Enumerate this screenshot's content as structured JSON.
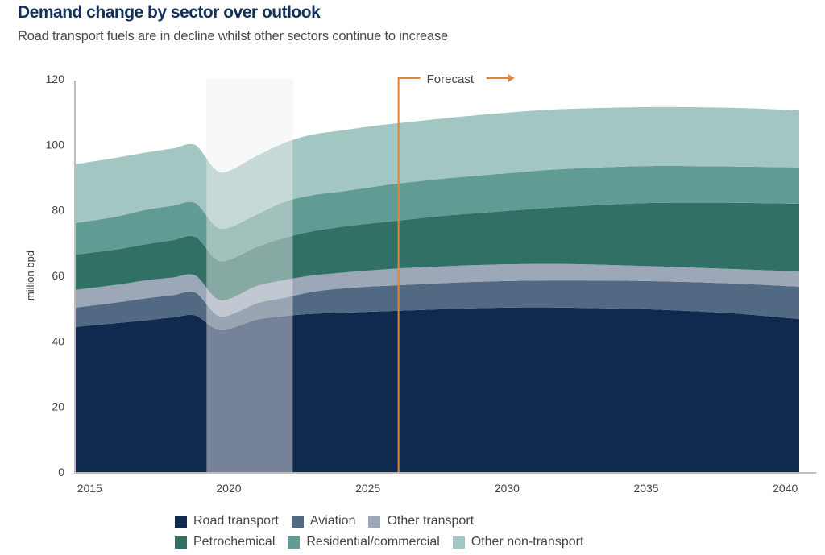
{
  "chart_data": {
    "type": "area",
    "stacked": true,
    "title": "Demand change by sector over outlook",
    "subtitle": "Road transport fuels are in decline whilst other sectors continue to increase",
    "xlabel": "",
    "ylabel": "million bpd",
    "xlim": [
      2014.5,
      2040.5
    ],
    "ylim": [
      0,
      120
    ],
    "x_ticks": [
      2015,
      2020,
      2025,
      2030,
      2035,
      2040
    ],
    "y_ticks": [
      0,
      20,
      40,
      60,
      80,
      100,
      120
    ],
    "grid": false,
    "legend_position": "bottom",
    "x": [
      2014.5,
      2016,
      2017,
      2018,
      2018.8,
      2019.7,
      2021,
      2022,
      2023,
      2024,
      2025,
      2026,
      2028,
      2030,
      2032,
      2035,
      2038,
      2040.5
    ],
    "series": [
      {
        "name": "Road transport",
        "color": "#10294f",
        "values": [
          44.3,
          45.5,
          46.3,
          47.2,
          47.8,
          43.3,
          46.5,
          47.6,
          48.3,
          48.6,
          48.9,
          49.2,
          49.8,
          50.2,
          50.2,
          49.7,
          48.5,
          46.7
        ]
      },
      {
        "name": "Aviation",
        "color": "#526984",
        "values": [
          5.9,
          6.3,
          6.7,
          6.8,
          7.0,
          4.2,
          5.0,
          5.6,
          6.7,
          7.4,
          7.7,
          7.8,
          8.0,
          8.1,
          8.3,
          8.6,
          9.1,
          9.9
        ]
      },
      {
        "name": "Other transport",
        "color": "#9ca8b8",
        "values": [
          5.4,
          5.4,
          5.5,
          5.4,
          5.2,
          4.9,
          5.3,
          5.4,
          5.0,
          4.8,
          4.9,
          5.1,
          5.1,
          5.1,
          5.0,
          4.6,
          4.4,
          4.6
        ]
      },
      {
        "name": "Petrochemical",
        "color": "#317065",
        "values": [
          10.8,
          10.8,
          11.0,
          11.4,
          11.8,
          12.0,
          11.9,
          12.9,
          13.5,
          14.0,
          14.3,
          14.6,
          15.5,
          16.3,
          17.4,
          19.2,
          20.2,
          20.7
        ]
      },
      {
        "name": "Residential/commercial",
        "color": "#619c94",
        "values": [
          9.6,
          10.0,
          10.5,
          10.5,
          10.3,
          9.9,
          9.9,
          11.0,
          11.0,
          10.8,
          11.0,
          11.3,
          11.4,
          11.5,
          11.6,
          11.3,
          11.1,
          11.1
        ]
      },
      {
        "name": "Other non-transport",
        "color": "#a2c6c2",
        "values": [
          18.0,
          18.0,
          17.5,
          17.5,
          17.7,
          17.2,
          17.9,
          18.0,
          18.5,
          18.6,
          18.6,
          18.4,
          18.4,
          18.5,
          18.3,
          18.0,
          17.9,
          17.4
        ]
      }
    ],
    "annotations": {
      "forecast_label": "Forecast",
      "forecast_start_year": 2026.1,
      "forecast_color": "#e0863a",
      "shaded_period": [
        2019.2,
        2022.3
      ],
      "shaded_color": "#f2f0ef"
    }
  },
  "legend": {
    "rows": [
      [
        {
          "label": "Road transport",
          "color": "#10294f"
        },
        {
          "label": "Aviation",
          "color": "#526984"
        },
        {
          "label": "Other transport",
          "color": "#9ca8b8"
        }
      ],
      [
        {
          "label": "Petrochemical",
          "color": "#317065"
        },
        {
          "label": "Residential/commercial",
          "color": "#619c94"
        },
        {
          "label": "Other non-transport",
          "color": "#a2c6c2"
        }
      ]
    ]
  }
}
